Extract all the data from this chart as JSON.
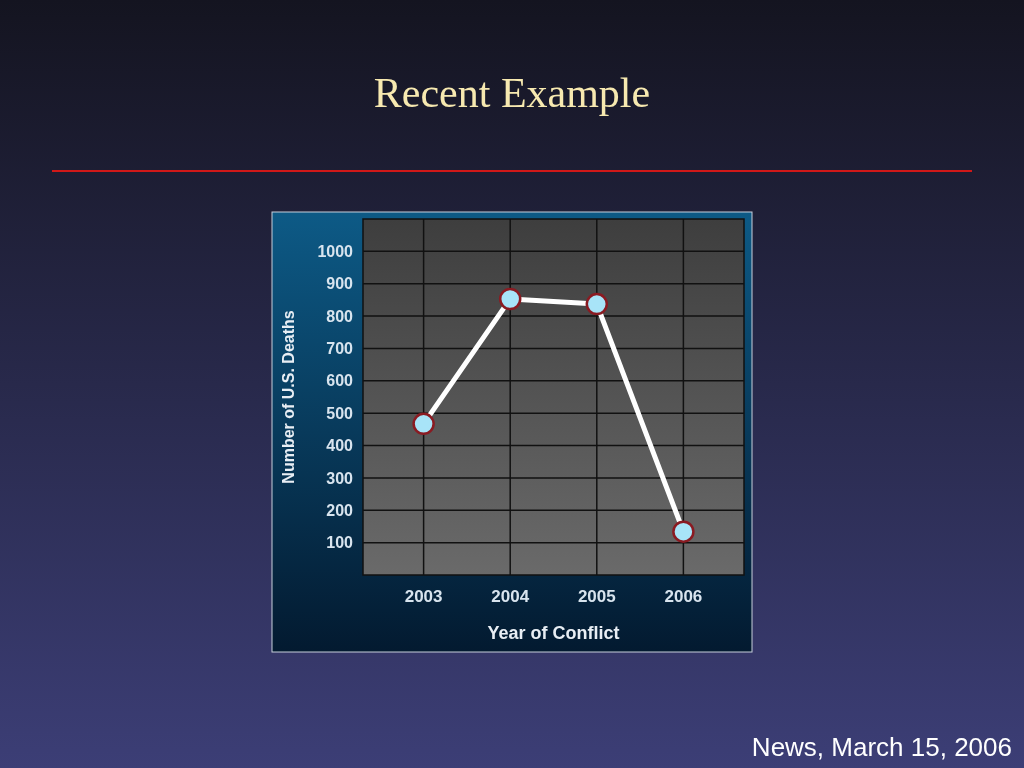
{
  "chart_data": {
    "type": "line",
    "title": "Recent Example",
    "xlabel": "Year of Conflict",
    "ylabel": "Number of U.S. Deaths",
    "categories": [
      "2003",
      "2004",
      "2005",
      "2006"
    ],
    "series": [
      {
        "color": "#ffffff",
        "values": [
          467,
          853,
          837,
          134
        ]
      }
    ],
    "ylim": [
      0,
      1100
    ],
    "yticks": [
      100,
      200,
      300,
      400,
      500,
      600,
      700,
      800,
      900,
      1000
    ],
    "grid": true,
    "marker": "circle",
    "line_style": "solid",
    "annotations": [
      "News, March 15, 2006"
    ]
  }
}
